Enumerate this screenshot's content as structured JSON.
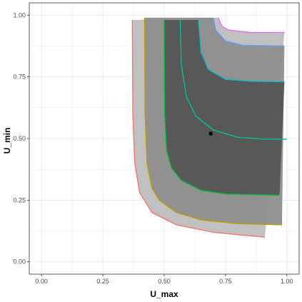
{
  "chart_data": {
    "type": "area",
    "xlabel": "U_max",
    "ylabel": "U_min",
    "xlim": [
      -0.05,
      1.05
    ],
    "ylim": [
      -0.05,
      1.05
    ],
    "x_ticks": [
      0.0,
      0.25,
      0.5,
      0.75,
      1.0
    ],
    "y_ticks": [
      0.0,
      0.25,
      0.5,
      0.75,
      1.0
    ],
    "x_tick_labels": [
      "0.00",
      "0.25",
      "0.50",
      "0.75",
      "1.00"
    ],
    "y_tick_labels": [
      "0.00",
      "0.25",
      "0.50",
      "0.75",
      "1.00"
    ],
    "grid": true,
    "background": "#ffffff",
    "grid_color": "#ebebeb",
    "bands": [
      {
        "fill": "#bdbdbd",
        "outer": [
          [
            0.37,
            0.98
          ],
          [
            0.372,
            0.6
          ],
          [
            0.38,
            0.4
          ],
          [
            0.4,
            0.28
          ],
          [
            0.45,
            0.2
          ],
          [
            0.55,
            0.15
          ],
          [
            0.7,
            0.12
          ],
          [
            0.8,
            0.11
          ],
          [
            0.91,
            0.1
          ]
        ],
        "outer_color": "#f8766d",
        "inner": [
          [
            0.72,
            0.99
          ],
          [
            0.735,
            0.955
          ],
          [
            0.76,
            0.94
          ],
          [
            0.85,
            0.93
          ],
          [
            0.99,
            0.93
          ]
        ],
        "inner_color": "#e76bf3"
      },
      {
        "fill": "#8e8e8e",
        "outer": [
          [
            0.42,
            0.99
          ],
          [
            0.422,
            0.6
          ],
          [
            0.43,
            0.4
          ],
          [
            0.45,
            0.3
          ],
          [
            0.48,
            0.25
          ],
          [
            0.55,
            0.2
          ],
          [
            0.65,
            0.17
          ],
          [
            0.8,
            0.155
          ],
          [
            0.98,
            0.15
          ]
        ],
        "outer_color": "#b79f00",
        "inner": [
          [
            0.7,
            0.99
          ],
          [
            0.71,
            0.94
          ],
          [
            0.75,
            0.895
          ],
          [
            0.82,
            0.878
          ],
          [
            0.99,
            0.875
          ]
        ],
        "inner_color": "#619cff"
      },
      {
        "fill": "#555555",
        "outer": [
          [
            0.5,
            0.98
          ],
          [
            0.502,
            0.6
          ],
          [
            0.51,
            0.45
          ],
          [
            0.53,
            0.38
          ],
          [
            0.57,
            0.33
          ],
          [
            0.65,
            0.29
          ],
          [
            0.75,
            0.275
          ],
          [
            0.97,
            0.27
          ]
        ],
        "outer_color": "#00ba38",
        "inner": [
          [
            0.64,
            0.98
          ],
          [
            0.65,
            0.85
          ],
          [
            0.68,
            0.78
          ],
          [
            0.75,
            0.74
          ],
          [
            0.85,
            0.732
          ],
          [
            0.99,
            0.73
          ]
        ],
        "inner_color": "#00bfc4"
      }
    ],
    "median_line": {
      "color": "#00c19a",
      "points": [
        [
          0.565,
          0.98
        ],
        [
          0.57,
          0.8
        ],
        [
          0.59,
          0.67
        ],
        [
          0.63,
          0.59
        ],
        [
          0.7,
          0.535
        ],
        [
          0.8,
          0.505
        ],
        [
          0.9,
          0.498
        ],
        [
          1.0,
          0.497
        ]
      ]
    },
    "point": {
      "x": 0.69,
      "y": 0.52,
      "color": "#000000"
    }
  }
}
